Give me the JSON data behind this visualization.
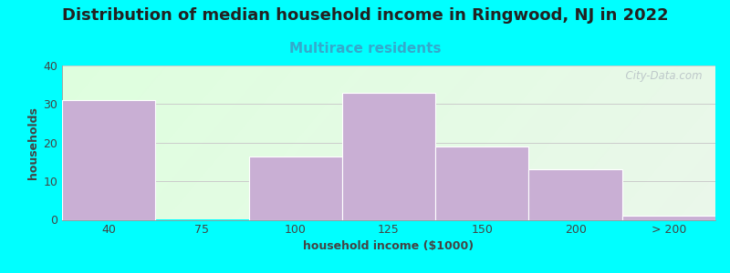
{
  "title": "Distribution of median household income in Ringwood, NJ in 2022",
  "subtitle": "Multirace residents",
  "xlabel": "household income ($1000)",
  "ylabel": "households",
  "background_outer": "#00FFFF",
  "bar_color": "#c9afd4",
  "bar_edgecolor": "#ffffff",
  "categories": [
    "40",
    "75",
    "100",
    "125",
    "150",
    "200",
    "> 200"
  ],
  "values": [
    31,
    0,
    16.5,
    33,
    19,
    13,
    1
  ],
  "ylim": [
    0,
    40
  ],
  "yticks": [
    0,
    10,
    20,
    30,
    40
  ],
  "title_fontsize": 13,
  "subtitle_fontsize": 11,
  "subtitle_color": "#33aacc",
  "axis_label_fontsize": 9,
  "tick_fontsize": 9,
  "watermark_text": "  City-Data.com",
  "title_color": "#222222"
}
